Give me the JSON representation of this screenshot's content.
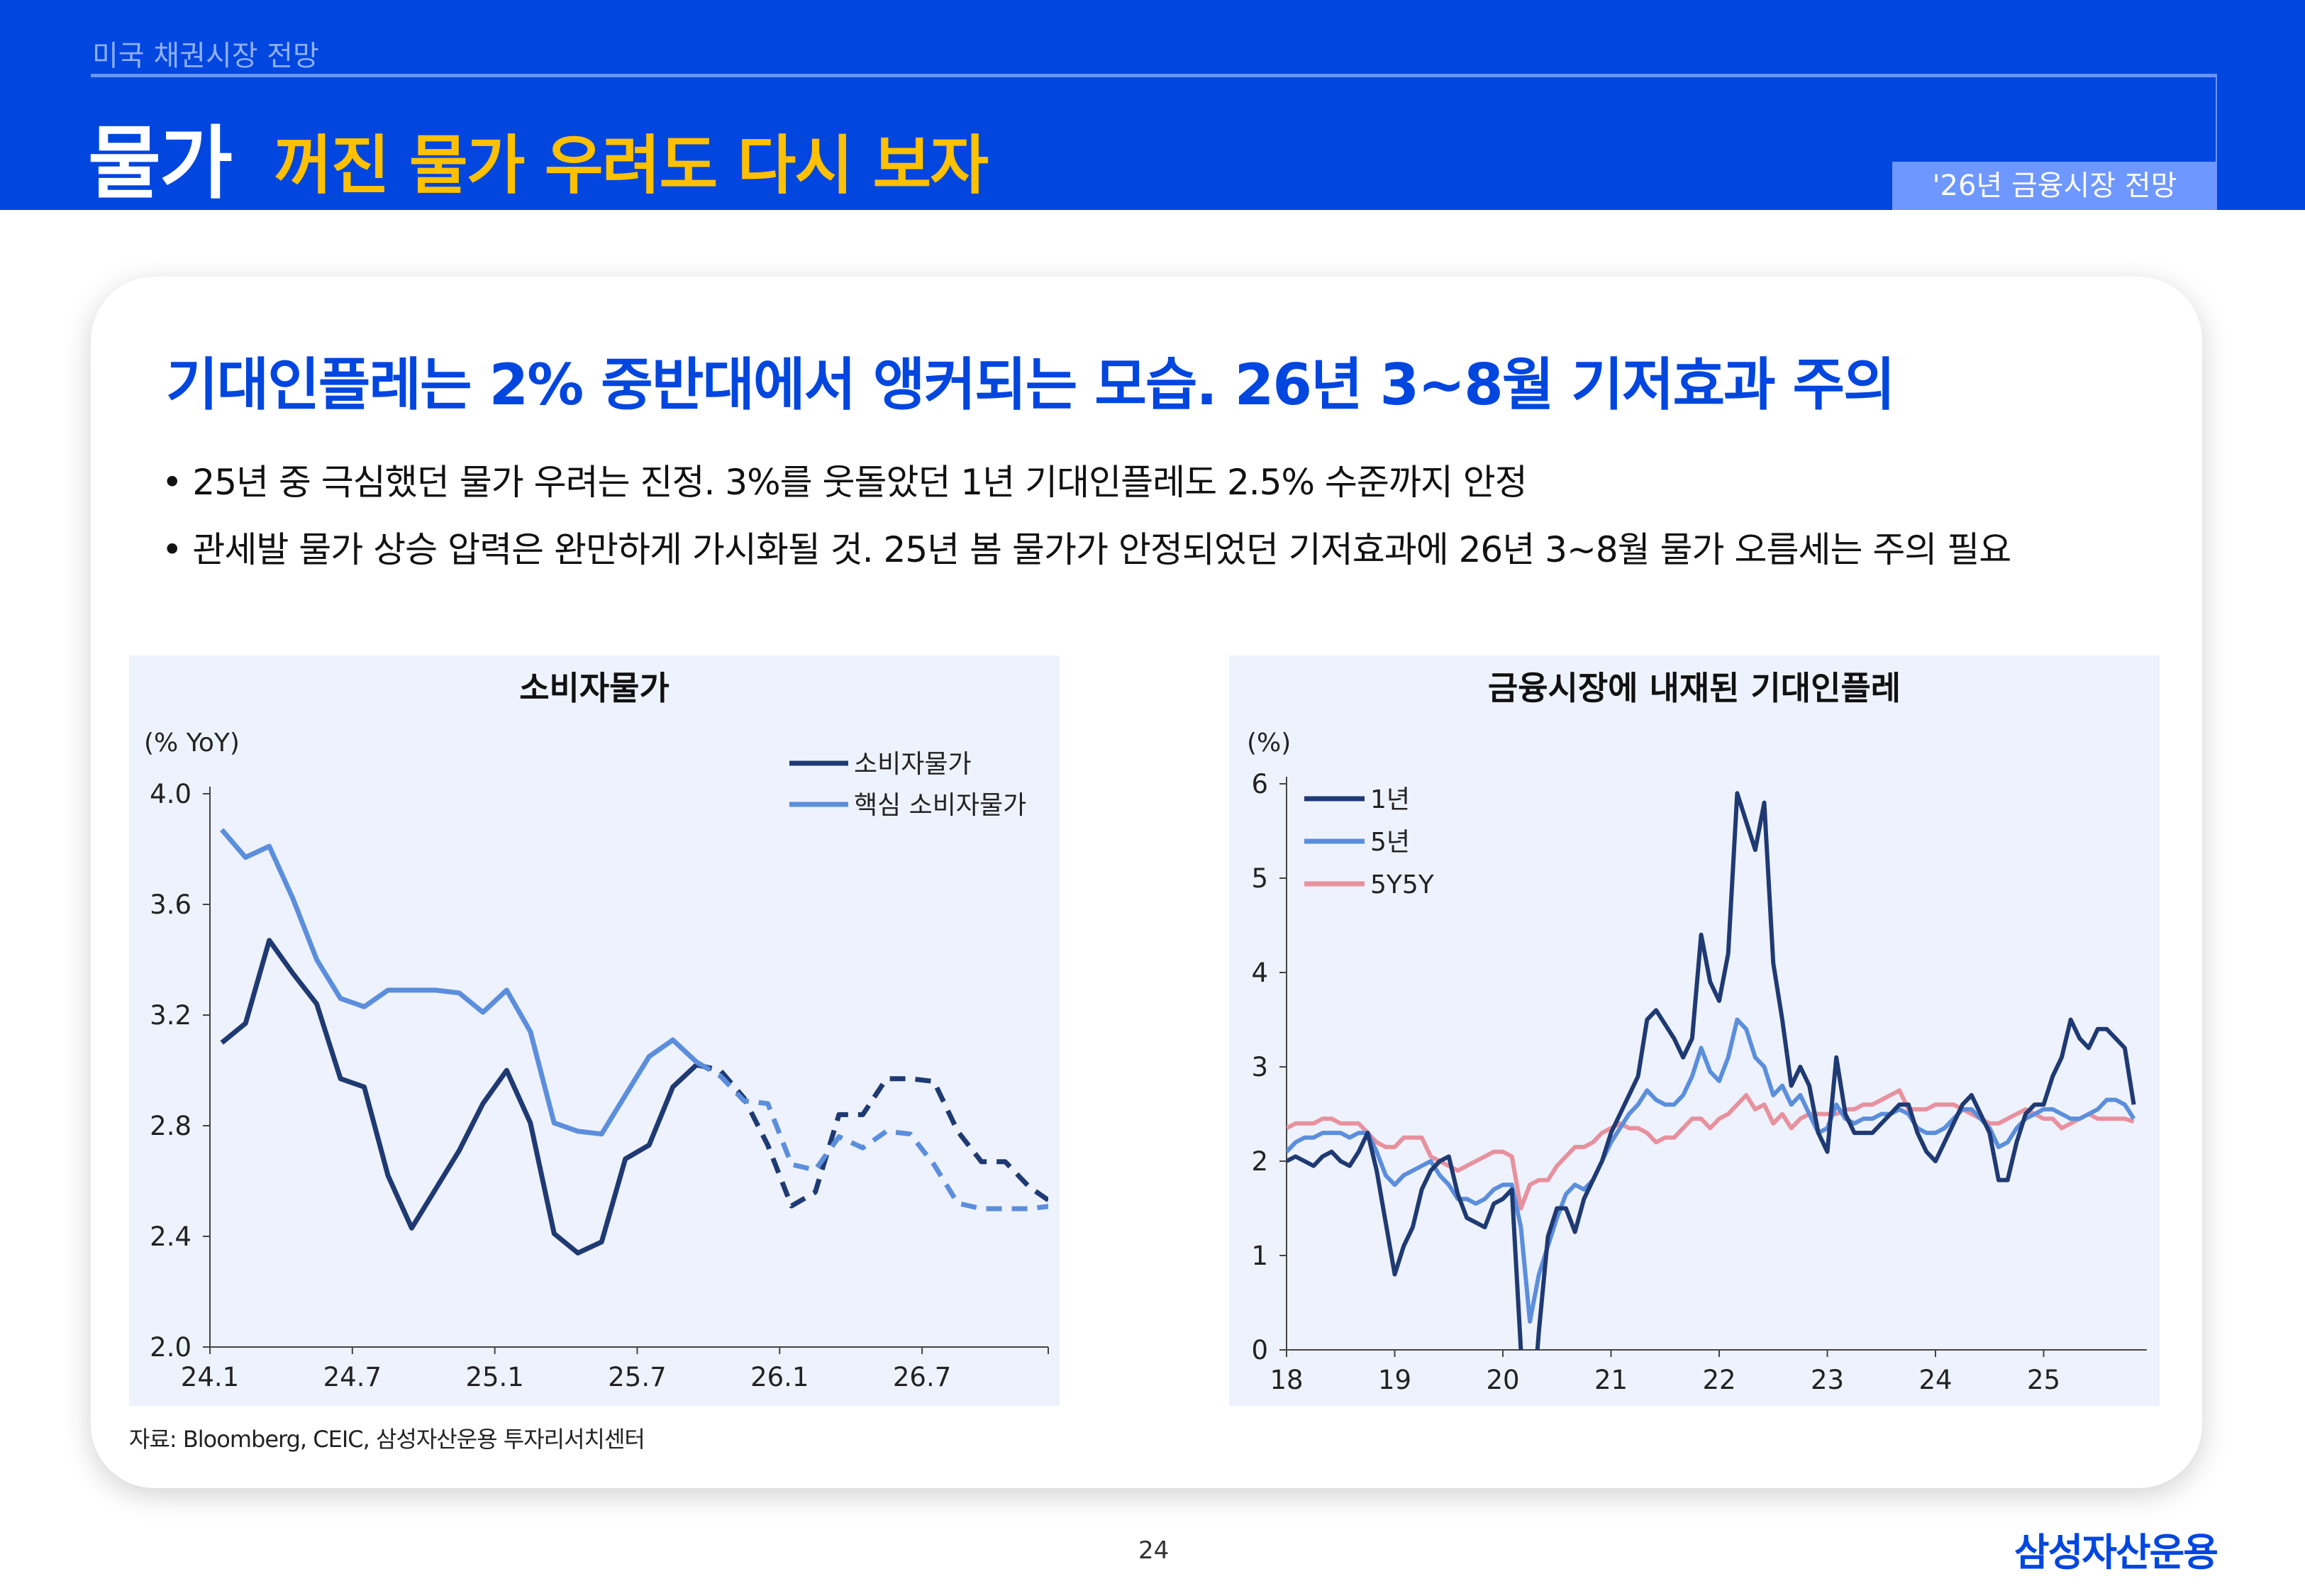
{
  "header": {
    "section": "미국 채권시장 전망",
    "title": "물가",
    "subtitle": "꺼진 물가 우려도 다시 보자",
    "tag": "'26년 금융시장 전망",
    "color": "#0046DF",
    "subtitle_color": "#FFC000"
  },
  "main": {
    "headline": "기대인플레는 2% 중반대에서 앵커되는 모습. 26년 3~8월 기저효과 주의",
    "bullets": [
      "• 25년 중 극심했던 물가 우려는 진정. 3%를 웃돌았던 1년 기대인플레도 2.5% 수준까지 안정",
      "• 관세발 물가 상승 압력은 완만하게 가시화될 것. 25년 봄 물가가 안정되었던 기저효과에 26년 3~8월 물가 오름세는 주의 필요"
    ],
    "source": "자료: Bloomberg, CEIC, 삼성자산운용 투자리서치센터"
  },
  "footer": {
    "page_number": "24",
    "logo": "삼성자산운용"
  },
  "chart_data": [
    {
      "type": "line",
      "title": "소비자물가",
      "ylabel": "(% YoY)",
      "ylim": [
        2.0,
        4.0
      ],
      "yticks": [
        "2.0",
        "2.4",
        "2.8",
        "3.2",
        "3.6",
        "4.0"
      ],
      "xticks": [
        "24.1",
        "24.7",
        "25.1",
        "25.7",
        "26.1",
        "26.7"
      ],
      "x_range": [
        "24.1",
        "26.12"
      ],
      "frequency": "monthly",
      "forecast_from": "25.9",
      "legend": "top-right",
      "grid": false,
      "series": [
        {
          "name": "소비자물가",
          "color": "#1F3A73",
          "values": [
            3.1,
            3.17,
            3.47,
            3.35,
            3.24,
            2.97,
            2.94,
            2.62,
            2.43,
            2.57,
            2.71,
            2.88,
            3.0,
            2.81,
            2.41,
            2.34,
            2.38,
            2.68,
            2.73,
            2.94,
            3.02,
            3.0,
            2.9,
            2.73,
            2.51,
            2.56,
            2.84,
            2.84,
            2.97,
            2.97,
            2.96,
            2.78,
            2.67,
            2.67,
            2.58,
            2.52
          ]
        },
        {
          "name": "핵심 소비자물가",
          "color": "#5B8EDC",
          "values": [
            3.87,
            3.77,
            3.81,
            3.62,
            3.4,
            3.26,
            3.23,
            3.29,
            3.29,
            3.29,
            3.28,
            3.21,
            3.29,
            3.14,
            2.81,
            2.78,
            2.77,
            2.91,
            3.05,
            3.11,
            3.03,
            2.98,
            2.89,
            2.88,
            2.66,
            2.64,
            2.76,
            2.72,
            2.78,
            2.77,
            2.66,
            2.52,
            2.5,
            2.5,
            2.5,
            2.51
          ]
        }
      ]
    },
    {
      "type": "line",
      "title": "금융시장에 내재된 기대인플레",
      "ylabel": "(%)",
      "ylim": [
        0,
        6
      ],
      "yticks": [
        "0",
        "1",
        "2",
        "3",
        "4",
        "5",
        "6"
      ],
      "xticks": [
        "18",
        "19",
        "20",
        "21",
        "22",
        "23",
        "24",
        "25"
      ],
      "x_range": [
        "2018-01",
        "2025-11"
      ],
      "frequency": "monthly (approx.)",
      "legend": "top-left",
      "grid": false,
      "series": [
        {
          "name": "1년",
          "color": "#1F3A73",
          "values": [
            2.0,
            2.05,
            2.0,
            1.95,
            2.05,
            2.1,
            2.0,
            1.95,
            2.1,
            2.3,
            1.9,
            1.35,
            0.8,
            1.1,
            1.3,
            1.7,
            1.9,
            2.0,
            2.05,
            1.65,
            1.4,
            1.35,
            1.3,
            1.55,
            1.6,
            1.7,
            0.0,
            -1.0,
            0.2,
            1.2,
            1.5,
            1.5,
            1.25,
            1.6,
            1.8,
            2.0,
            2.3,
            2.5,
            2.7,
            2.9,
            3.5,
            3.6,
            3.45,
            3.3,
            3.1,
            3.3,
            4.4,
            3.9,
            3.7,
            4.2,
            5.9,
            5.6,
            5.3,
            5.8,
            4.1,
            3.5,
            2.8,
            3.0,
            2.8,
            2.3,
            2.1,
            3.1,
            2.5,
            2.3,
            2.3,
            2.3,
            2.4,
            2.5,
            2.6,
            2.6,
            2.3,
            2.1,
            2.0,
            2.2,
            2.4,
            2.6,
            2.7,
            2.5,
            2.3,
            1.8,
            1.8,
            2.2,
            2.5,
            2.6,
            2.6,
            2.9,
            3.1,
            3.5,
            3.3,
            3.2,
            3.4,
            3.4,
            3.3,
            3.2,
            2.6
          ]
        },
        {
          "name": "5년",
          "color": "#5B8EDC",
          "values": [
            2.1,
            2.2,
            2.25,
            2.25,
            2.3,
            2.3,
            2.3,
            2.25,
            2.3,
            2.3,
            2.1,
            1.85,
            1.75,
            1.85,
            1.9,
            1.95,
            2.0,
            1.85,
            1.75,
            1.6,
            1.6,
            1.55,
            1.6,
            1.7,
            1.75,
            1.75,
            1.3,
            0.3,
            0.8,
            1.1,
            1.4,
            1.65,
            1.75,
            1.7,
            1.8,
            2.0,
            2.2,
            2.35,
            2.5,
            2.6,
            2.75,
            2.65,
            2.6,
            2.6,
            2.7,
            2.9,
            3.2,
            2.95,
            2.85,
            3.1,
            3.5,
            3.4,
            3.1,
            3.0,
            2.7,
            2.8,
            2.6,
            2.7,
            2.5,
            2.3,
            2.35,
            2.6,
            2.45,
            2.4,
            2.45,
            2.45,
            2.5,
            2.5,
            2.55,
            2.5,
            2.35,
            2.3,
            2.3,
            2.35,
            2.45,
            2.55,
            2.55,
            2.45,
            2.35,
            2.15,
            2.2,
            2.35,
            2.45,
            2.5,
            2.55,
            2.55,
            2.5,
            2.45,
            2.45,
            2.5,
            2.55,
            2.65,
            2.65,
            2.6,
            2.45
          ]
        },
        {
          "name": "5Y5Y",
          "color": "#E8919E",
          "values": [
            2.35,
            2.4,
            2.4,
            2.4,
            2.45,
            2.45,
            2.4,
            2.4,
            2.4,
            2.3,
            2.2,
            2.15,
            2.15,
            2.25,
            2.25,
            2.25,
            2.05,
            2.0,
            1.95,
            1.9,
            1.95,
            2.0,
            2.05,
            2.1,
            2.1,
            2.05,
            1.5,
            1.75,
            1.8,
            1.8,
            1.95,
            2.05,
            2.15,
            2.15,
            2.2,
            2.3,
            2.35,
            2.4,
            2.35,
            2.35,
            2.3,
            2.2,
            2.25,
            2.25,
            2.35,
            2.45,
            2.45,
            2.35,
            2.45,
            2.5,
            2.6,
            2.7,
            2.55,
            2.6,
            2.4,
            2.5,
            2.35,
            2.45,
            2.5,
            2.5,
            2.5,
            2.5,
            2.55,
            2.55,
            2.6,
            2.6,
            2.65,
            2.7,
            2.75,
            2.55,
            2.55,
            2.55,
            2.6,
            2.6,
            2.6,
            2.55,
            2.5,
            2.45,
            2.4,
            2.4,
            2.45,
            2.5,
            2.55,
            2.5,
            2.45,
            2.45,
            2.35,
            2.4,
            2.45,
            2.5,
            2.45,
            2.45,
            2.45,
            2.45,
            2.42
          ]
        }
      ]
    }
  ]
}
